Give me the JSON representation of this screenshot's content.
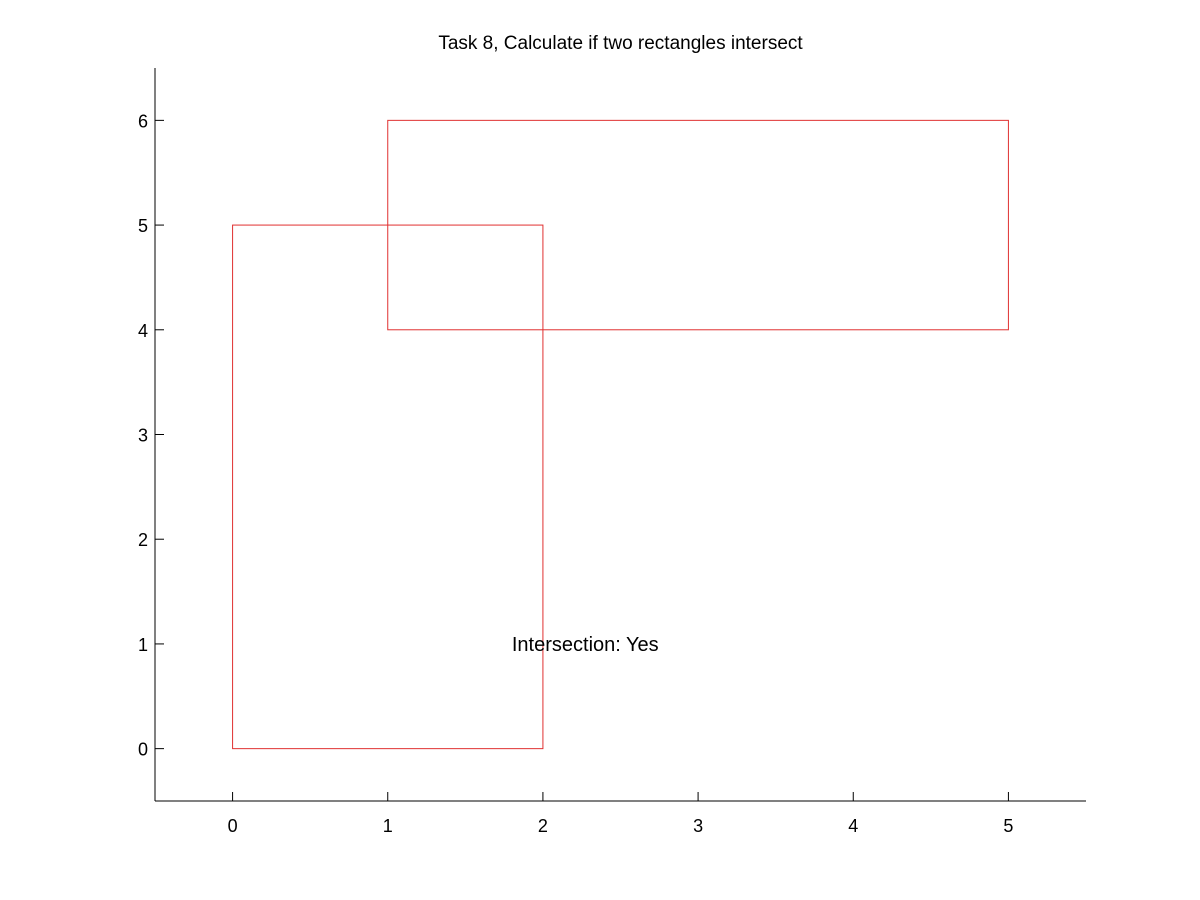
{
  "chart_data": {
    "type": "rectangles",
    "title": "Task 8, Calculate if two rectangles intersect",
    "xlabel": "",
    "ylabel": "",
    "xlim": [
      -0.5,
      5.5
    ],
    "ylim": [
      -0.5,
      6.5
    ],
    "xticks": [
      0,
      1,
      2,
      3,
      4,
      5
    ],
    "yticks": [
      0,
      1,
      2,
      3,
      4,
      5,
      6
    ],
    "grid": false,
    "box": false,
    "series": [
      {
        "x": 0,
        "y": 0,
        "width": 2,
        "height": 5,
        "color": "#e03030"
      },
      {
        "x": 1,
        "y": 4,
        "width": 4,
        "height": 2,
        "color": "#e03030"
      }
    ],
    "annotations": [
      {
        "text": "Intersection: Yes",
        "x": 1.8,
        "y": 1.0
      }
    ]
  }
}
